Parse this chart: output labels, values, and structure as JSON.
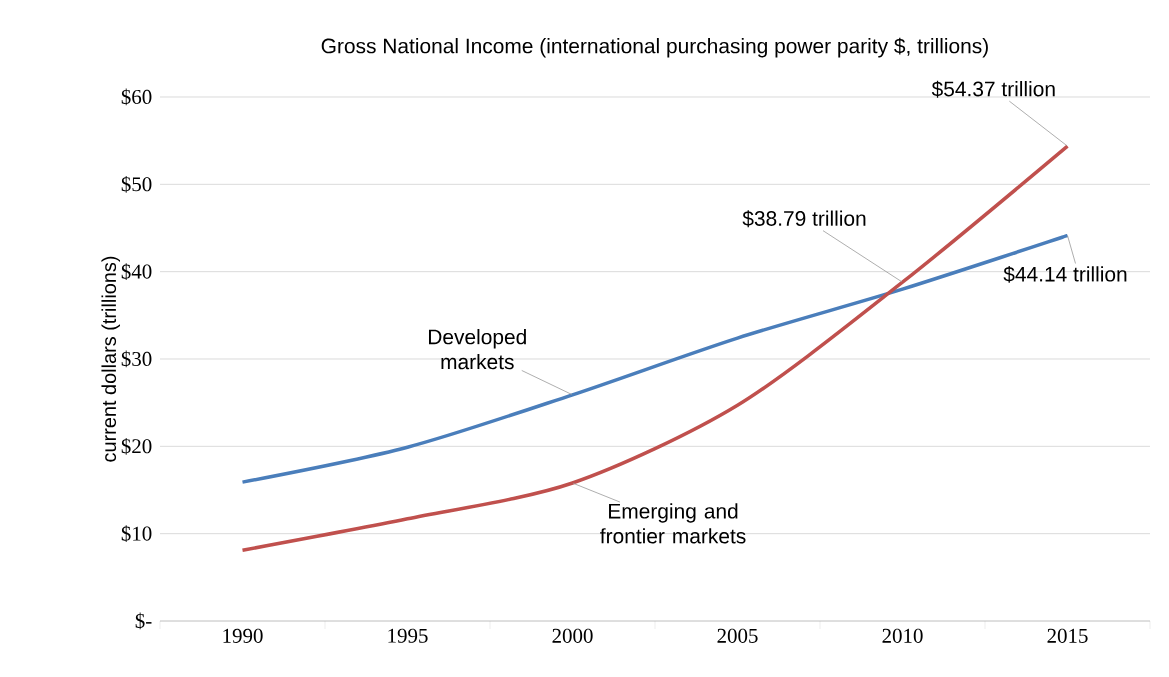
{
  "chart_data": {
    "type": "line",
    "title": "Gross National Income (international purchasing power parity $, trillions)",
    "ylabel": "current dollars (trillions)",
    "categories": [
      "1990",
      "1995",
      "2000",
      "2005",
      "2010",
      "2015"
    ],
    "series": [
      {
        "name": "Developed markets",
        "color": "#4a7ebb",
        "values": [
          15.9,
          19.9,
          25.9,
          32.4,
          38.0,
          44.14
        ],
        "value_labels": [
          null,
          null,
          null,
          null,
          null,
          "$44.14 trillion"
        ]
      },
      {
        "name": "Emerging and frontier markets",
        "color": "#c0504d",
        "values": [
          8.1,
          11.7,
          15.8,
          24.7,
          38.79,
          54.37
        ],
        "value_labels": [
          null,
          null,
          null,
          null,
          "$38.79 trillion",
          "$54.37 trillion"
        ]
      }
    ],
    "ylim": [
      0,
      60
    ],
    "yticks": [
      {
        "value": 0,
        "label": "$-"
      },
      {
        "value": 10,
        "label": "$10"
      },
      {
        "value": 20,
        "label": "$20"
      },
      {
        "value": 30,
        "label": "$30"
      },
      {
        "value": 40,
        "label": "$40"
      },
      {
        "value": 50,
        "label": "$50"
      },
      {
        "value": 60,
        "label": "$60"
      }
    ],
    "grid": "y"
  }
}
